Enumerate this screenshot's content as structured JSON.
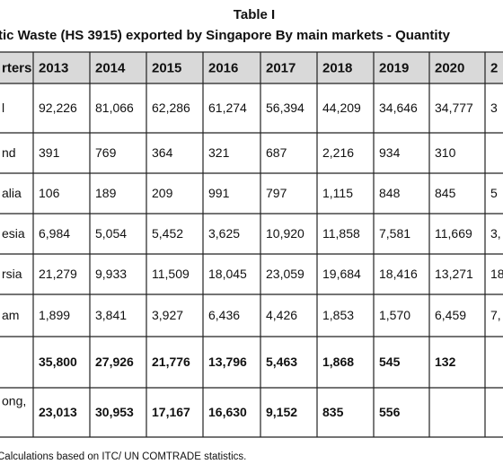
{
  "title": "Table I",
  "subtitle": "tic Waste (HS 3915) exported by Singapore By main markets - Quantity",
  "table": {
    "header": [
      "rters",
      "2013",
      "2014",
      "2015",
      "2016",
      "2017",
      "2018",
      "2019",
      "2020",
      "2"
    ],
    "rows": [
      [
        "l",
        "92,226",
        "81,066",
        "62,286",
        "61,274",
        "56,394",
        "44,209",
        "34,646",
        "34,777",
        "3"
      ],
      [
        "nd",
        "391",
        "769",
        "364",
        "321",
        "687",
        "2,216",
        "934",
        "310",
        null
      ],
      [
        "alia",
        "106",
        "189",
        "209",
        "991",
        "797",
        "1,115",
        "848",
        "845",
        "5"
      ],
      [
        "esia",
        "6,984",
        "5,054",
        "5,452",
        "3,625",
        "10,920",
        "11,858",
        "7,581",
        "11,669",
        "3,"
      ],
      [
        "rsia",
        "21,279",
        "9,933",
        "11,509",
        "18,045",
        "23,059",
        "19,684",
        "18,416",
        "13,271",
        "18"
      ],
      [
        "am",
        "1,899",
        "3,841",
        "3,927",
        "6,436",
        "4,426",
        "1,853",
        "1,570",
        "6,459",
        "7,"
      ],
      [
        null,
        "35,800",
        "27,926",
        "21,776",
        "13,796",
        "5,463",
        "1,868",
        "545",
        "132",
        null
      ],
      [
        "ong,",
        "23,013",
        "30,953",
        "17,167",
        "16,630",
        "9,152",
        "835",
        "556",
        null,
        null
      ]
    ]
  },
  "footnote": "Calculations based on ITC/ UN COMTRADE statistics."
}
